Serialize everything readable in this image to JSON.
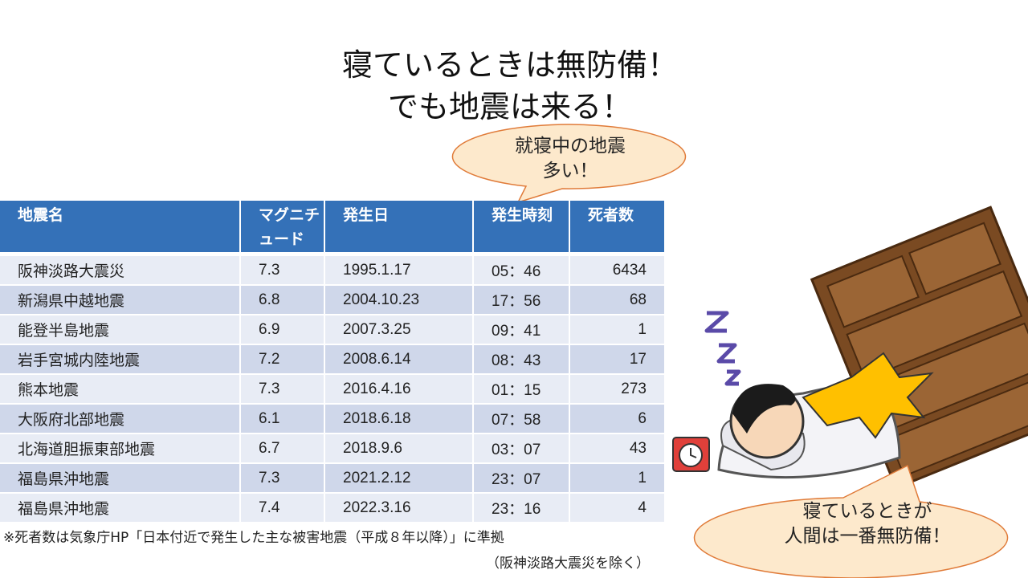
{
  "title": {
    "line1": "寝ているときは無防備！",
    "line2": "でも地震は来る！"
  },
  "callout_top": {
    "line1": "就寝中の地震",
    "line2": "多い！"
  },
  "callout_bottom": {
    "line1": "寝ているときが",
    "line2": "人間は一番無防備！"
  },
  "table": {
    "header": [
      "地震名",
      "マグニチュード",
      "発生日",
      "発生時刻",
      "死者数"
    ],
    "rows": [
      [
        "阪神淡路大震災",
        7.3,
        "1995.1.17",
        "05：46",
        6434
      ],
      [
        "新潟県中越地震",
        6.8,
        "2004.10.23",
        "17：56",
        68
      ],
      [
        "能登半島地震",
        6.9,
        "2007.3.25",
        "09：41",
        1
      ],
      [
        "岩手宮城内陸地震",
        7.2,
        "2008.6.14",
        "08：43",
        17
      ],
      [
        "熊本地震",
        7.3,
        "2016.4.16",
        "01：15",
        273
      ],
      [
        "大阪府北部地震",
        6.1,
        "2018.6.18",
        "07：58",
        6
      ],
      [
        "北海道胆振東部地震",
        6.7,
        "2018.9.6",
        "03：07",
        43
      ],
      [
        "福島県沖地震",
        7.3,
        "2021.2.12",
        "23：07",
        1
      ],
      [
        "福島県沖地震",
        7.4,
        "2022.3.16",
        "23：16",
        4
      ]
    ]
  },
  "footnote": {
    "line1": "※死者数は気象庁HP「日本付近で発生した主な被害地震（平成８年以降）」に準拠",
    "line2": "（阪神淡路大震災を除く）"
  }
}
